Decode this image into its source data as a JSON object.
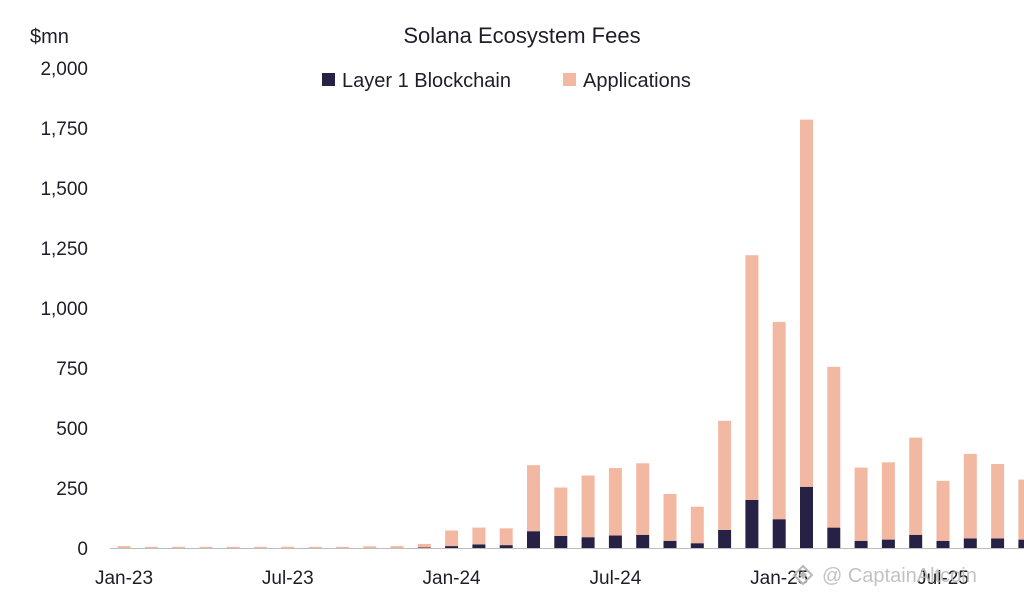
{
  "chart_data": {
    "type": "bar",
    "stacked": true,
    "title": "Solana Ecosystem Fees",
    "unit_label": "$mn",
    "ylim": [
      0,
      2000
    ],
    "yticks": [
      0,
      250,
      500,
      750,
      1000,
      1250,
      1500,
      1750,
      2000
    ],
    "ytick_labels": [
      "0",
      "250",
      "500",
      "750",
      "1,000",
      "1,250",
      "1,500",
      "1,750",
      "2,000"
    ],
    "categories": [
      "Jan-23",
      "Feb-23",
      "Mar-23",
      "Apr-23",
      "May-23",
      "Jun-23",
      "Jul-23",
      "Aug-23",
      "Sep-23",
      "Oct-23",
      "Nov-23",
      "Dec-23",
      "Jan-24",
      "Feb-24",
      "Mar-24",
      "Apr-24",
      "May-24",
      "Jun-24",
      "Jul-24",
      "Aug-24",
      "Sep-24",
      "Oct-24",
      "Nov-24",
      "Dec-24",
      "Jan-25",
      "Feb-25",
      "Mar-25",
      "Apr-25",
      "May-25",
      "Jun-25",
      "Jul-25",
      "Aug-25",
      "Sep-25",
      "Oct-25"
    ],
    "xtick_labels": [
      {
        "index": 0,
        "label": "Jan-23"
      },
      {
        "index": 6,
        "label": "Jul-23"
      },
      {
        "index": 12,
        "label": "Jan-24"
      },
      {
        "index": 18,
        "label": "Jul-24"
      },
      {
        "index": 24,
        "label": "Jan-25"
      },
      {
        "index": 30,
        "label": "Jul-25"
      }
    ],
    "legend_position": "top-center",
    "series": [
      {
        "name": "Layer 1 Blockchain",
        "color": "#262145",
        "values": [
          0,
          0,
          0,
          0,
          0,
          0,
          0,
          0,
          0,
          0,
          0,
          2,
          8,
          15,
          12,
          70,
          50,
          45,
          52,
          55,
          30,
          20,
          75,
          200,
          120,
          255,
          85,
          30,
          35,
          55,
          30,
          40,
          40,
          35
        ]
      },
      {
        "name": "Applications",
        "color": "#f3b8a2",
        "values": [
          8,
          5,
          5,
          5,
          5,
          5,
          5,
          5,
          5,
          7,
          8,
          15,
          65,
          70,
          70,
          275,
          202,
          257,
          281,
          298,
          195,
          152,
          455,
          1020,
          822,
          1530,
          670,
          305,
          322,
          405,
          250,
          352,
          310,
          250
        ]
      }
    ]
  },
  "watermark": {
    "text": "@ CaptainAltcoin",
    "icon": "diamond-logo-icon"
  }
}
